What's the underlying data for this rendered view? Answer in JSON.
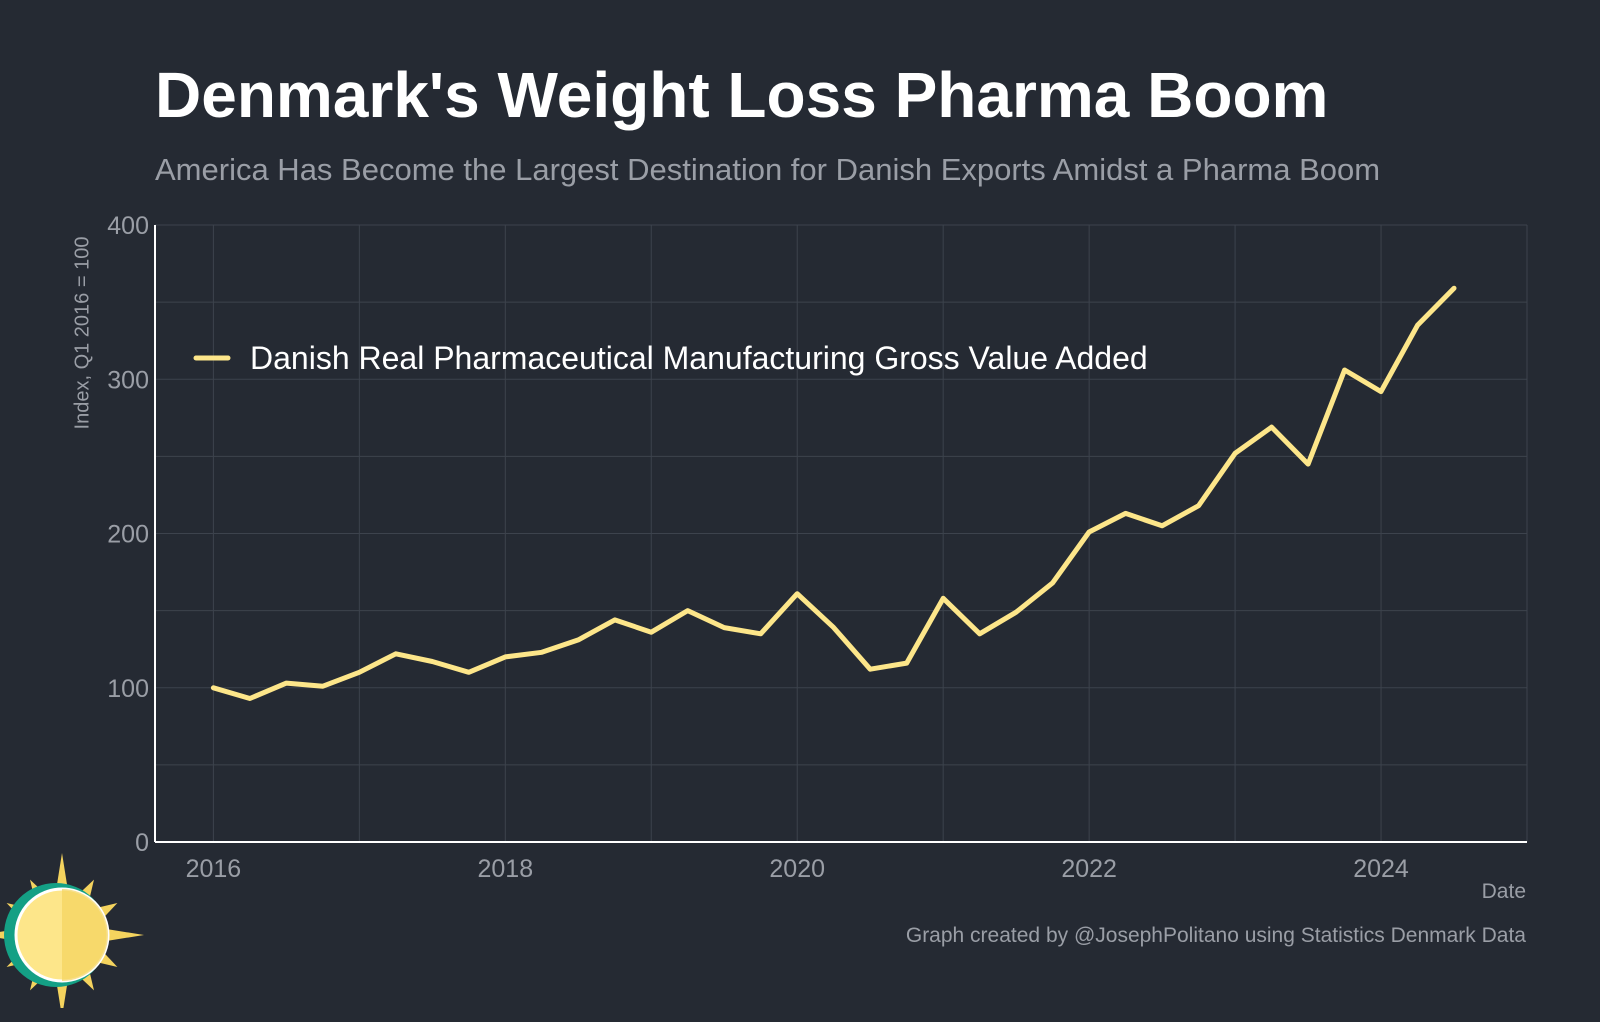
{
  "header": {
    "title": "Denmark's Weight Loss Pharma Boom",
    "subtitle": "America Has Become the Largest Destination for Danish Exports Amidst a Pharma Boom"
  },
  "footer": {
    "credit": "Graph created by @JosephPolitano using Statistics Denmark Data"
  },
  "logo": {
    "icon": "sun-logo-icon"
  },
  "colors": {
    "background": "#252a33",
    "line": "#fde68a",
    "grid": "#3d434d",
    "text_muted": "#9a9ea6",
    "logo_teal": "#14a085",
    "logo_yellow": "#fde68a",
    "logo_ray": "#f4d35e"
  },
  "chart_data": {
    "type": "line",
    "title": "Denmark's Weight Loss Pharma Boom",
    "subtitle": "America Has Become the Largest Destination for Danish Exports Amidst a Pharma Boom",
    "xlabel": "Date",
    "ylabel": "Index, Q1 2016 = 100",
    "xlim": [
      2015.6,
      2025.0
    ],
    "ylim": [
      0,
      400
    ],
    "x_ticks": [
      2016,
      2018,
      2020,
      2022,
      2024
    ],
    "y_ticks": [
      0,
      100,
      200,
      300,
      400
    ],
    "grid": true,
    "legend_position": "top-left",
    "series": [
      {
        "name": "Danish Real Pharmaceutical Manufacturing Gross Value Added",
        "color": "#fde68a",
        "x": [
          2016.0,
          2016.25,
          2016.5,
          2016.75,
          2017.0,
          2017.25,
          2017.5,
          2017.75,
          2018.0,
          2018.25,
          2018.5,
          2018.75,
          2019.0,
          2019.25,
          2019.5,
          2019.75,
          2020.0,
          2020.25,
          2020.5,
          2020.75,
          2021.0,
          2021.25,
          2021.5,
          2021.75,
          2022.0,
          2022.25,
          2022.5,
          2022.75,
          2023.0,
          2023.25,
          2023.5,
          2023.75,
          2024.0,
          2024.25,
          2024.5
        ],
        "values": [
          100,
          93,
          103,
          101,
          110,
          122,
          117,
          110,
          120,
          123,
          131,
          144,
          136,
          150,
          139,
          135,
          161,
          139,
          112,
          116,
          158,
          135,
          149,
          168,
          201,
          213,
          205,
          218,
          252,
          269,
          245,
          306,
          292,
          335,
          359
        ]
      }
    ]
  }
}
